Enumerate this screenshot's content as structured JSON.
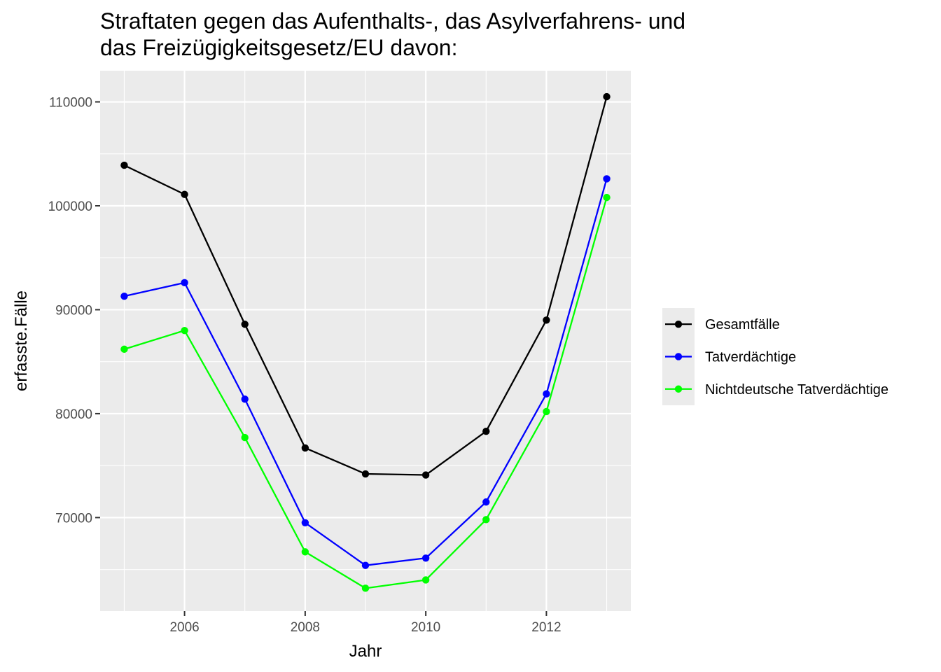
{
  "chart_data": {
    "type": "line",
    "title_lines": [
      "Straftaten gegen das Aufenthalts-, das Asylverfahrens- und",
      "das Freizügigkeitsgesetz/EU davon:"
    ],
    "xlabel": "Jahr",
    "ylabel": "erfasste.Fälle",
    "x": [
      2005,
      2006,
      2007,
      2008,
      2009,
      2010,
      2011,
      2012,
      2013
    ],
    "xlim": [
      2004.6,
      2013.4
    ],
    "ylim": [
      61000,
      113000
    ],
    "x_ticks": [
      2006,
      2008,
      2010,
      2012
    ],
    "x_tick_labels": [
      "2006",
      "2008",
      "2010",
      "2012"
    ],
    "y_ticks": [
      70000,
      80000,
      90000,
      100000,
      110000
    ],
    "y_tick_labels": [
      "70000",
      "80000",
      "90000",
      "100000",
      "110000"
    ],
    "grid": true,
    "legend_position": "right",
    "series": [
      {
        "name": "Gesamtfälle",
        "color": "#000000",
        "values": [
          103900,
          101100,
          88600,
          76700,
          74200,
          74100,
          78300,
          89000,
          110500
        ]
      },
      {
        "name": "Tatverdächtige",
        "color": "#0000ff",
        "values": [
          91300,
          92600,
          81400,
          69500,
          65400,
          66100,
          71500,
          81900,
          102600
        ]
      },
      {
        "name": "Nichtdeutsche Tatverdächtige",
        "color": "#00ff00",
        "values": [
          86200,
          88000,
          77700,
          66700,
          63200,
          64000,
          69800,
          80200,
          100800
        ]
      }
    ]
  }
}
